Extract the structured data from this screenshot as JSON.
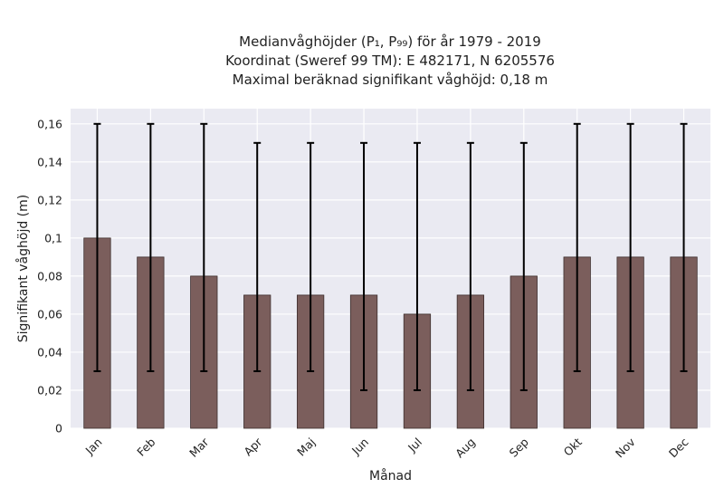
{
  "chart_data": {
    "type": "bar",
    "title_lines": [
      "Medianvåghöjder (P₁, P₉₉) för år 1979 - 2019",
      "Koordinat (Sweref 99 TM): E 482171, N 6205576",
      "Maximal beräknad signifikant våghöjd: 0,18 m"
    ],
    "xlabel": "Månad",
    "ylabel": "Signifikant våghöjd (m)",
    "categories": [
      "Jan",
      "Feb",
      "Mar",
      "Apr",
      "Maj",
      "Jun",
      "Jul",
      "Aug",
      "Sep",
      "Okt",
      "Nov",
      "Dec"
    ],
    "series": [
      {
        "values": [
          0.1,
          0.09,
          0.08,
          0.07,
          0.07,
          0.07,
          0.06,
          0.07,
          0.08,
          0.09,
          0.09,
          0.09
        ],
        "error_low": [
          0.03,
          0.03,
          0.03,
          0.03,
          0.03,
          0.02,
          0.02,
          0.02,
          0.02,
          0.03,
          0.03,
          0.03
        ],
        "error_high": [
          0.16,
          0.16,
          0.16,
          0.15,
          0.15,
          0.15,
          0.15,
          0.15,
          0.15,
          0.16,
          0.16,
          0.16
        ]
      }
    ],
    "ylim": [
      0,
      0.168
    ],
    "yticks": [
      0,
      0.02,
      0.04,
      0.06,
      0.08,
      0.1,
      0.12,
      0.14,
      0.16
    ],
    "ytick_labels": [
      "0",
      "0,02",
      "0,04",
      "0,06",
      "0,08",
      "0,1",
      "0,12",
      "0,14",
      "0,16"
    ],
    "grid": true,
    "bar_color": "#7b5e5c",
    "bar_edge_color": "#3d2f2e",
    "error_color": "#000000",
    "plot_background": "#eaeaf2",
    "grid_color": "#ffffff"
  }
}
